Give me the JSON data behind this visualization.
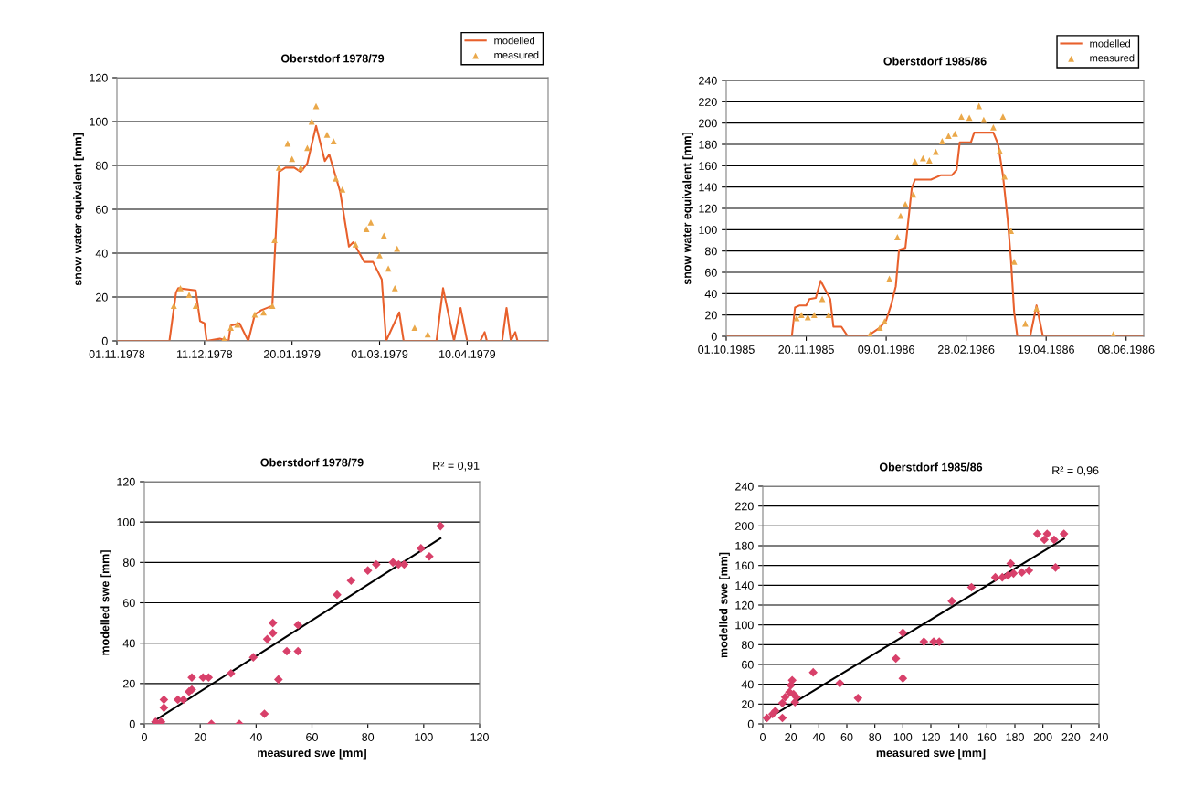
{
  "chart_data": [
    {
      "type": "line",
      "title": "Oberstdorf 1978/79",
      "ylabel": "snow water equivalent [mm]",
      "grid": "y",
      "legend": "top right",
      "xlim": [
        "1978-11-01",
        "1979-05-17"
      ],
      "ylim": [
        0,
        120
      ],
      "yticks": [
        0,
        20,
        40,
        60,
        80,
        100,
        120
      ],
      "xticks": [
        {
          "value": "1978-11-01",
          "label": "01.11.1978"
        },
        {
          "value": "1978-12-11",
          "label": "11.12.1978"
        },
        {
          "value": "1979-01-20",
          "label": "20.01.1979"
        },
        {
          "value": "1979-03-01",
          "label": "01.03.1979"
        },
        {
          "value": "1979-04-10",
          "label": "10.04.1979"
        }
      ],
      "series": [
        {
          "name": "modelled",
          "color": "#e8602c",
          "line_style": "solid",
          "x": [
            "1978-11-01",
            "1978-11-25",
            "1978-11-28",
            "1978-11-29",
            "1978-12-07",
            "1978-12-09",
            "1978-12-11",
            "1978-12-12",
            "1978-12-18",
            "1978-12-22",
            "1978-12-23",
            "1978-12-27",
            "1978-12-31",
            "1979-01-03",
            "1979-01-06",
            "1979-01-11",
            "1979-01-12",
            "1979-01-14",
            "1979-01-17",
            "1979-01-21",
            "1979-01-24",
            "1979-01-27",
            "1979-01-31",
            "1979-02-04",
            "1979-02-06",
            "1979-02-11",
            "1979-02-15",
            "1979-02-17",
            "1979-02-22",
            "1979-02-26",
            "1979-03-02",
            "1979-03-04",
            "1979-03-10",
            "1979-03-12",
            "1979-03-27",
            "1979-03-30",
            "1979-04-04",
            "1979-04-07",
            "1979-04-10",
            "1979-04-16",
            "1979-04-18",
            "1979-04-19",
            "1979-04-26",
            "1979-04-28",
            "1979-04-30",
            "1979-05-02",
            "1979-05-03",
            "1979-05-17"
          ],
          "values": [
            0,
            0,
            22,
            24,
            23,
            9,
            8,
            0,
            1,
            0,
            7,
            8,
            0,
            12,
            14,
            16,
            37,
            77,
            79,
            79,
            77,
            81,
            98,
            82,
            85,
            68,
            43,
            45,
            36,
            36,
            28,
            0,
            13,
            0,
            0,
            24,
            0,
            15,
            0,
            0,
            4,
            0,
            0,
            15,
            0,
            4,
            0,
            0
          ]
        },
        {
          "name": "measured",
          "type": "scatter",
          "color": "#eaa84a",
          "marker": "triangle",
          "x": [
            "1978-11-27",
            "1978-11-30",
            "1978-12-04",
            "1978-12-07",
            "1978-12-20",
            "1978-12-23",
            "1978-12-26",
            "1979-01-03",
            "1979-01-07",
            "1979-01-11",
            "1979-01-12",
            "1979-01-14",
            "1979-01-18",
            "1979-01-20",
            "1979-01-24",
            "1979-01-27",
            "1979-01-29",
            "1979-01-31",
            "1979-02-05",
            "1979-02-08",
            "1979-02-09",
            "1979-02-12",
            "1979-02-18",
            "1979-02-23",
            "1979-02-25",
            "1979-03-01",
            "1979-03-03",
            "1979-03-05",
            "1979-03-08",
            "1979-03-09",
            "1979-03-17",
            "1979-03-23"
          ],
          "values": [
            16,
            24,
            21,
            16,
            1,
            6,
            7.5,
            12,
            13,
            16,
            46,
            79,
            90,
            83,
            79,
            88,
            100,
            107,
            94,
            91,
            74,
            69,
            44,
            51,
            54,
            39,
            48,
            33,
            24,
            42,
            6,
            3
          ]
        }
      ]
    },
    {
      "type": "line",
      "title": "Oberstdorf 1985/86",
      "ylabel": "snow water equivalent [mm]",
      "grid": "y",
      "legend": "top right",
      "xlim": [
        "1985-10-01",
        "1986-06-19"
      ],
      "ylim": [
        0,
        240
      ],
      "yticks": [
        0,
        20,
        40,
        60,
        80,
        100,
        120,
        140,
        160,
        180,
        200,
        220,
        240
      ],
      "xticks": [
        {
          "value": "1985-10-01",
          "label": "01.10.1985"
        },
        {
          "value": "1985-11-20",
          "label": "20.11.1985"
        },
        {
          "value": "1986-01-09",
          "label": "09.01.1986"
        },
        {
          "value": "1986-02-28",
          "label": "28.02.1986"
        },
        {
          "value": "1986-04-19",
          "label": "19.04.1986"
        },
        {
          "value": "1986-06-08",
          "label": "08.06.1986"
        }
      ],
      "series": [
        {
          "name": "modelled",
          "color": "#e8602c",
          "line_style": "solid",
          "x": [
            "1985-10-01",
            "1985-11-11",
            "1985-11-13",
            "1985-11-16",
            "1985-11-20",
            "1985-11-22",
            "1985-11-26",
            "1985-11-29",
            "1985-12-05",
            "1985-12-07",
            "1985-12-12",
            "1985-12-16",
            "1985-12-28",
            "1986-01-05",
            "1986-01-09",
            "1986-01-12",
            "1986-01-15",
            "1986-01-17",
            "1986-01-21",
            "1986-01-25",
            "1986-01-27",
            "1986-02-06",
            "1986-02-12",
            "1986-02-19",
            "1986-02-22",
            "1986-02-24",
            "1986-03-03",
            "1986-03-05",
            "1986-03-17",
            "1986-03-20",
            "1986-03-23",
            "1986-03-26",
            "1986-03-28",
            "1986-03-30",
            "1986-04-01",
            "1986-04-09",
            "1986-04-13",
            "1986-04-17",
            "1986-06-19"
          ],
          "values": [
            0,
            0,
            27,
            29,
            29,
            35,
            36,
            52,
            35,
            9,
            9,
            0,
            0,
            8,
            15,
            29,
            47,
            81,
            83,
            139,
            147,
            147,
            151,
            151,
            156,
            182,
            182,
            191,
            191,
            180,
            151,
            109,
            72,
            23,
            0,
            0,
            29,
            0,
            0
          ]
        },
        {
          "name": "measured",
          "type": "scatter",
          "color": "#eaa84a",
          "marker": "triangle",
          "x": [
            "1985-11-14",
            "1985-11-17",
            "1985-11-21",
            "1985-11-25",
            "1985-11-30",
            "1985-12-04",
            "1985-12-30",
            "1986-01-05",
            "1986-01-08",
            "1986-01-11",
            "1986-01-16",
            "1986-01-18",
            "1986-01-21",
            "1986-01-26",
            "1986-01-27",
            "1986-02-01",
            "1986-02-05",
            "1986-02-09",
            "1986-02-13",
            "1986-02-17",
            "1986-02-21",
            "1986-02-25",
            "1986-03-02",
            "1986-03-08",
            "1986-03-11",
            "1986-03-17",
            "1986-03-21",
            "1986-03-23",
            "1986-03-24",
            "1986-03-28",
            "1986-03-30",
            "1986-04-06",
            "1986-04-13",
            "1986-05-31"
          ],
          "values": [
            17,
            20,
            18,
            20,
            35,
            20,
            2,
            8,
            14,
            54,
            93,
            113,
            124,
            133,
            164,
            167,
            165,
            173,
            183,
            188,
            190,
            206,
            205,
            216,
            203,
            196,
            174,
            206,
            150,
            99,
            70,
            12,
            26,
            2
          ]
        }
      ]
    },
    {
      "type": "scatter",
      "title": "Oberstdorf 1978/79",
      "annotations": [
        "R² = 0,91"
      ],
      "xlabel": "measured swe [mm]",
      "ylabel": "modelled swe [mm]",
      "grid": "y",
      "xlim": [
        0,
        120
      ],
      "xticks": [
        0,
        20,
        40,
        60,
        80,
        100,
        120
      ],
      "ylim": [
        0,
        120
      ],
      "yticks": [
        0,
        20,
        40,
        60,
        80,
        100,
        120
      ],
      "series": [
        {
          "color": "#d8406a",
          "marker": "diamond",
          "x": [
            4,
            6,
            7,
            7,
            12,
            14,
            16,
            17,
            17,
            21,
            23,
            24,
            31,
            34,
            39,
            43,
            44,
            46,
            46,
            48,
            51,
            55,
            55,
            69,
            74,
            80,
            83,
            89,
            91,
            93,
            99,
            102,
            106
          ],
          "values": [
            1,
            1,
            12,
            8,
            12,
            12,
            16,
            23,
            17,
            23,
            23,
            0,
            25,
            0,
            33,
            5,
            42,
            45,
            50,
            22,
            36,
            36,
            49,
            64,
            71,
            76,
            79,
            80,
            79,
            79,
            87,
            83,
            98
          ]
        },
        {
          "type": "line",
          "color": "#000000",
          "line_style": "solid",
          "x": [
            3,
            106
          ],
          "values": [
            1,
            92
          ]
        }
      ]
    },
    {
      "type": "scatter",
      "title": "Oberstdorf 1985/86",
      "annotations": [
        "R² = 0,96"
      ],
      "xlabel": "measured swe [mm]",
      "ylabel": "modelled swe [mm]",
      "grid": "y",
      "xlim": [
        0,
        240
      ],
      "xticks": [
        0,
        20,
        40,
        60,
        80,
        100,
        120,
        140,
        160,
        180,
        200,
        220,
        240
      ],
      "ylim": [
        0,
        240
      ],
      "yticks": [
        0,
        20,
        40,
        60,
        80,
        100,
        120,
        140,
        160,
        180,
        200,
        220,
        240
      ],
      "series": [
        {
          "color": "#d8406a",
          "marker": "diamond",
          "x": [
            3,
            7,
            9,
            14,
            14,
            16,
            19,
            20,
            21,
            22,
            24,
            23,
            36,
            55,
            68,
            95,
            100,
            100,
            115,
            122,
            126,
            135,
            149,
            166,
            171,
            175,
            177,
            179,
            185,
            190,
            196,
            203,
            201,
            208,
            209,
            215
          ],
          "values": [
            6,
            10,
            13,
            6,
            21,
            27,
            32,
            39,
            44,
            30,
            27,
            22,
            52,
            41,
            26,
            66,
            92,
            46,
            83,
            83,
            83,
            124,
            138,
            148,
            148,
            150,
            162,
            152,
            153,
            155,
            192,
            192,
            186,
            186,
            158,
            192
          ]
        },
        {
          "type": "line",
          "color": "#000000",
          "line_style": "solid",
          "x": [
            2,
            215
          ],
          "values": [
            4,
            187
          ]
        }
      ]
    }
  ]
}
